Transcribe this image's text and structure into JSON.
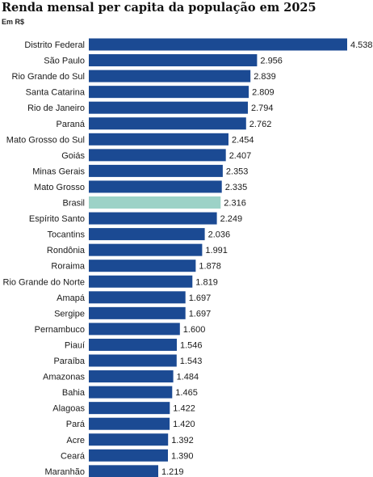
{
  "title": "Renda mensal per capita da população em 2025",
  "subtitle": "Em R$",
  "colors": {
    "bar": "#1b4a93",
    "highlight": "#9cd2c7"
  },
  "chart_data": {
    "type": "bar",
    "orientation": "horizontal",
    "title": "Renda mensal per capita da população em 2025",
    "subtitle": "Em R$",
    "xlabel": "",
    "ylabel": "",
    "xlim": [
      0,
      4538
    ],
    "grid": false,
    "highlight": "Brasil",
    "categories": [
      "Distrito Federal",
      "São Paulo",
      "Rio Grande do Sul",
      "Santa Catarina",
      "Rio de Janeiro",
      "Paraná",
      "Mato Grosso do Sul",
      "Goiás",
      "Minas Gerais",
      "Mato Grosso",
      "Brasil",
      "Espírito Santo",
      "Tocantins",
      "Rondônia",
      "Roraima",
      "Rio Grande do Norte",
      "Amapá",
      "Sergipe",
      "Pernambuco",
      "Piauí",
      "Paraíba",
      "Amazonas",
      "Bahia",
      "Alagoas",
      "Pará",
      "Acre",
      "Ceará",
      "Maranhão"
    ],
    "values": [
      4538,
      2956,
      2839,
      2809,
      2794,
      2762,
      2454,
      2407,
      2353,
      2335,
      2316,
      2249,
      2036,
      1991,
      1878,
      1819,
      1697,
      1697,
      1600,
      1546,
      1543,
      1484,
      1465,
      1422,
      1420,
      1392,
      1390,
      1219
    ],
    "value_labels": [
      "4.538",
      "2.956",
      "2.839",
      "2.809",
      "2.794",
      "2.762",
      "2.454",
      "2.407",
      "2.353",
      "2.335",
      "2.316",
      "2.249",
      "2.036",
      "1.991",
      "1.878",
      "1.819",
      "1.697",
      "1.697",
      "1.600",
      "1.546",
      "1.543",
      "1.484",
      "1.465",
      "1.422",
      "1.420",
      "1.392",
      "1.390",
      "1.219"
    ]
  }
}
